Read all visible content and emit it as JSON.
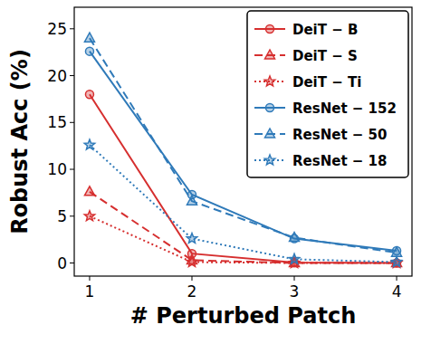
{
  "chart_data": {
    "type": "line",
    "x_label": "# Perturbed Patch",
    "y_label": "Robust Acc (%)",
    "x": [
      1,
      2,
      3,
      4
    ],
    "xlim": [
      0.85,
      4.15
    ],
    "xticks": [
      1,
      2,
      3,
      4
    ],
    "ylim": [
      -1.4,
      27.3
    ],
    "yticks": [
      0,
      5,
      10,
      15,
      20,
      25
    ],
    "legend": "upper-right",
    "grid": false,
    "series": [
      {
        "name": "DeiT − B",
        "color": "#d62f2f",
        "line_style": "solid",
        "marker": "circle",
        "values": [
          18.0,
          1.0,
          0.05,
          0.0
        ]
      },
      {
        "name": "DeiT − S",
        "color": "#d62f2f",
        "line_style": "dashed",
        "marker": "triangle",
        "values": [
          7.6,
          0.3,
          0.0,
          0.0
        ]
      },
      {
        "name": "DeiT − Ti",
        "color": "#d62f2f",
        "line_style": "dotted",
        "marker": "star",
        "values": [
          5.0,
          0.1,
          0.0,
          0.0
        ]
      },
      {
        "name": "ResNet − 152",
        "color": "#2f7ab9",
        "line_style": "solid",
        "marker": "circle",
        "values": [
          22.6,
          7.3,
          2.6,
          1.3
        ]
      },
      {
        "name": "ResNet − 50",
        "color": "#2f7ab9",
        "line_style": "dashed",
        "marker": "triangle",
        "values": [
          24.0,
          6.6,
          2.7,
          1.1
        ]
      },
      {
        "name": "ResNet − 18",
        "color": "#2f7ab9",
        "line_style": "dotted",
        "marker": "star",
        "values": [
          12.6,
          2.6,
          0.4,
          0.1
        ]
      }
    ]
  }
}
